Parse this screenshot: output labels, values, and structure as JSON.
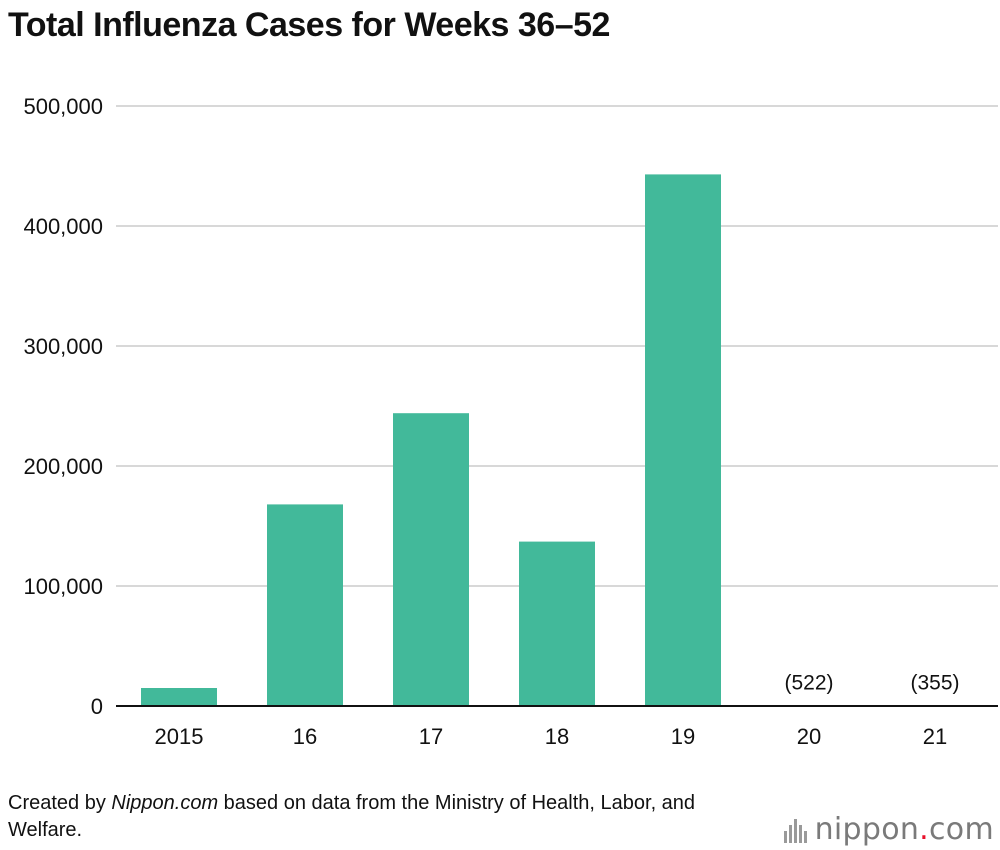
{
  "source": {
    "prefix": "Created by ",
    "site": "Nippon.com",
    "suffix": " based on data from the Ministry of Health, Labor, and Welfare."
  },
  "logo": {
    "name": "nippon",
    "dot": ".",
    "tld": "com"
  },
  "colors": {
    "bar": "#42b99a",
    "grid": "#cccccc",
    "axis": "#111111"
  },
  "chart_data": {
    "type": "bar",
    "title": "Total Influenza Cases for Weeks 36–52",
    "xlabel": "",
    "ylabel": "",
    "categories": [
      "2015",
      "16",
      "17",
      "18",
      "19",
      "20",
      "21"
    ],
    "values": [
      15000,
      168000,
      244000,
      137000,
      443000,
      522,
      355
    ],
    "data_labels": [
      "",
      "",
      "",
      "",
      "",
      "(522)",
      "(355)"
    ],
    "ylim": [
      0,
      500000
    ],
    "yticks": [
      0,
      100000,
      200000,
      300000,
      400000,
      500000
    ],
    "ytick_labels": [
      "0",
      "100,000",
      "200,000",
      "300,000",
      "400,000",
      "500,000"
    ],
    "grid": true,
    "legend": "none"
  }
}
